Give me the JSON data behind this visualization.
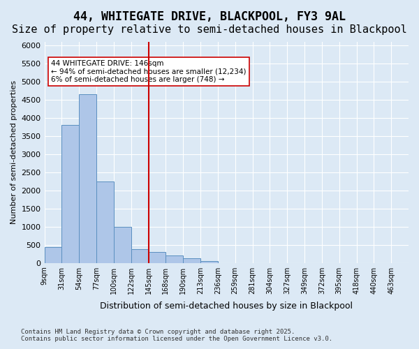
{
  "title1": "44, WHITEGATE DRIVE, BLACKPOOL, FY3 9AL",
  "title2": "Size of property relative to semi-detached houses in Blackpool",
  "xlabel": "Distribution of semi-detached houses by size in Blackpool",
  "ylabel": "Number of semi-detached properties",
  "footnote": "Contains HM Land Registry data © Crown copyright and database right 2025.\nContains public sector information licensed under the Open Government Licence v3.0.",
  "bin_labels": [
    "9sqm",
    "31sqm",
    "54sqm",
    "77sqm",
    "100sqm",
    "122sqm",
    "145sqm",
    "168sqm",
    "190sqm",
    "213sqm",
    "236sqm",
    "259sqm",
    "281sqm",
    "304sqm",
    "327sqm",
    "349sqm",
    "372sqm",
    "395sqm",
    "418sqm",
    "440sqm",
    "463sqm"
  ],
  "bar_values": [
    430,
    3800,
    4650,
    2250,
    1000,
    370,
    300,
    200,
    130,
    50,
    0,
    0,
    0,
    0,
    0,
    0,
    0,
    0,
    0,
    0
  ],
  "bar_color": "#aec6e8",
  "bar_edge_color": "#5a8fc0",
  "vline_pos": 5.5,
  "vline_color": "#cc0000",
  "annotation_text": "44 WHITEGATE DRIVE: 146sqm\n← 94% of semi-detached houses are smaller (12,234)\n6% of semi-detached houses are larger (748) →",
  "annotation_box_color": "#ffffff",
  "annotation_box_edge_color": "#cc0000",
  "ylim": [
    0,
    6100
  ],
  "yticks": [
    0,
    500,
    1000,
    1500,
    2000,
    2500,
    3000,
    3500,
    4000,
    4500,
    5000,
    5500,
    6000
  ],
  "background_color": "#dce9f5",
  "plot_bg_color": "#dce9f5",
  "grid_color": "#ffffff",
  "title_fontsize": 12,
  "subtitle_fontsize": 11
}
